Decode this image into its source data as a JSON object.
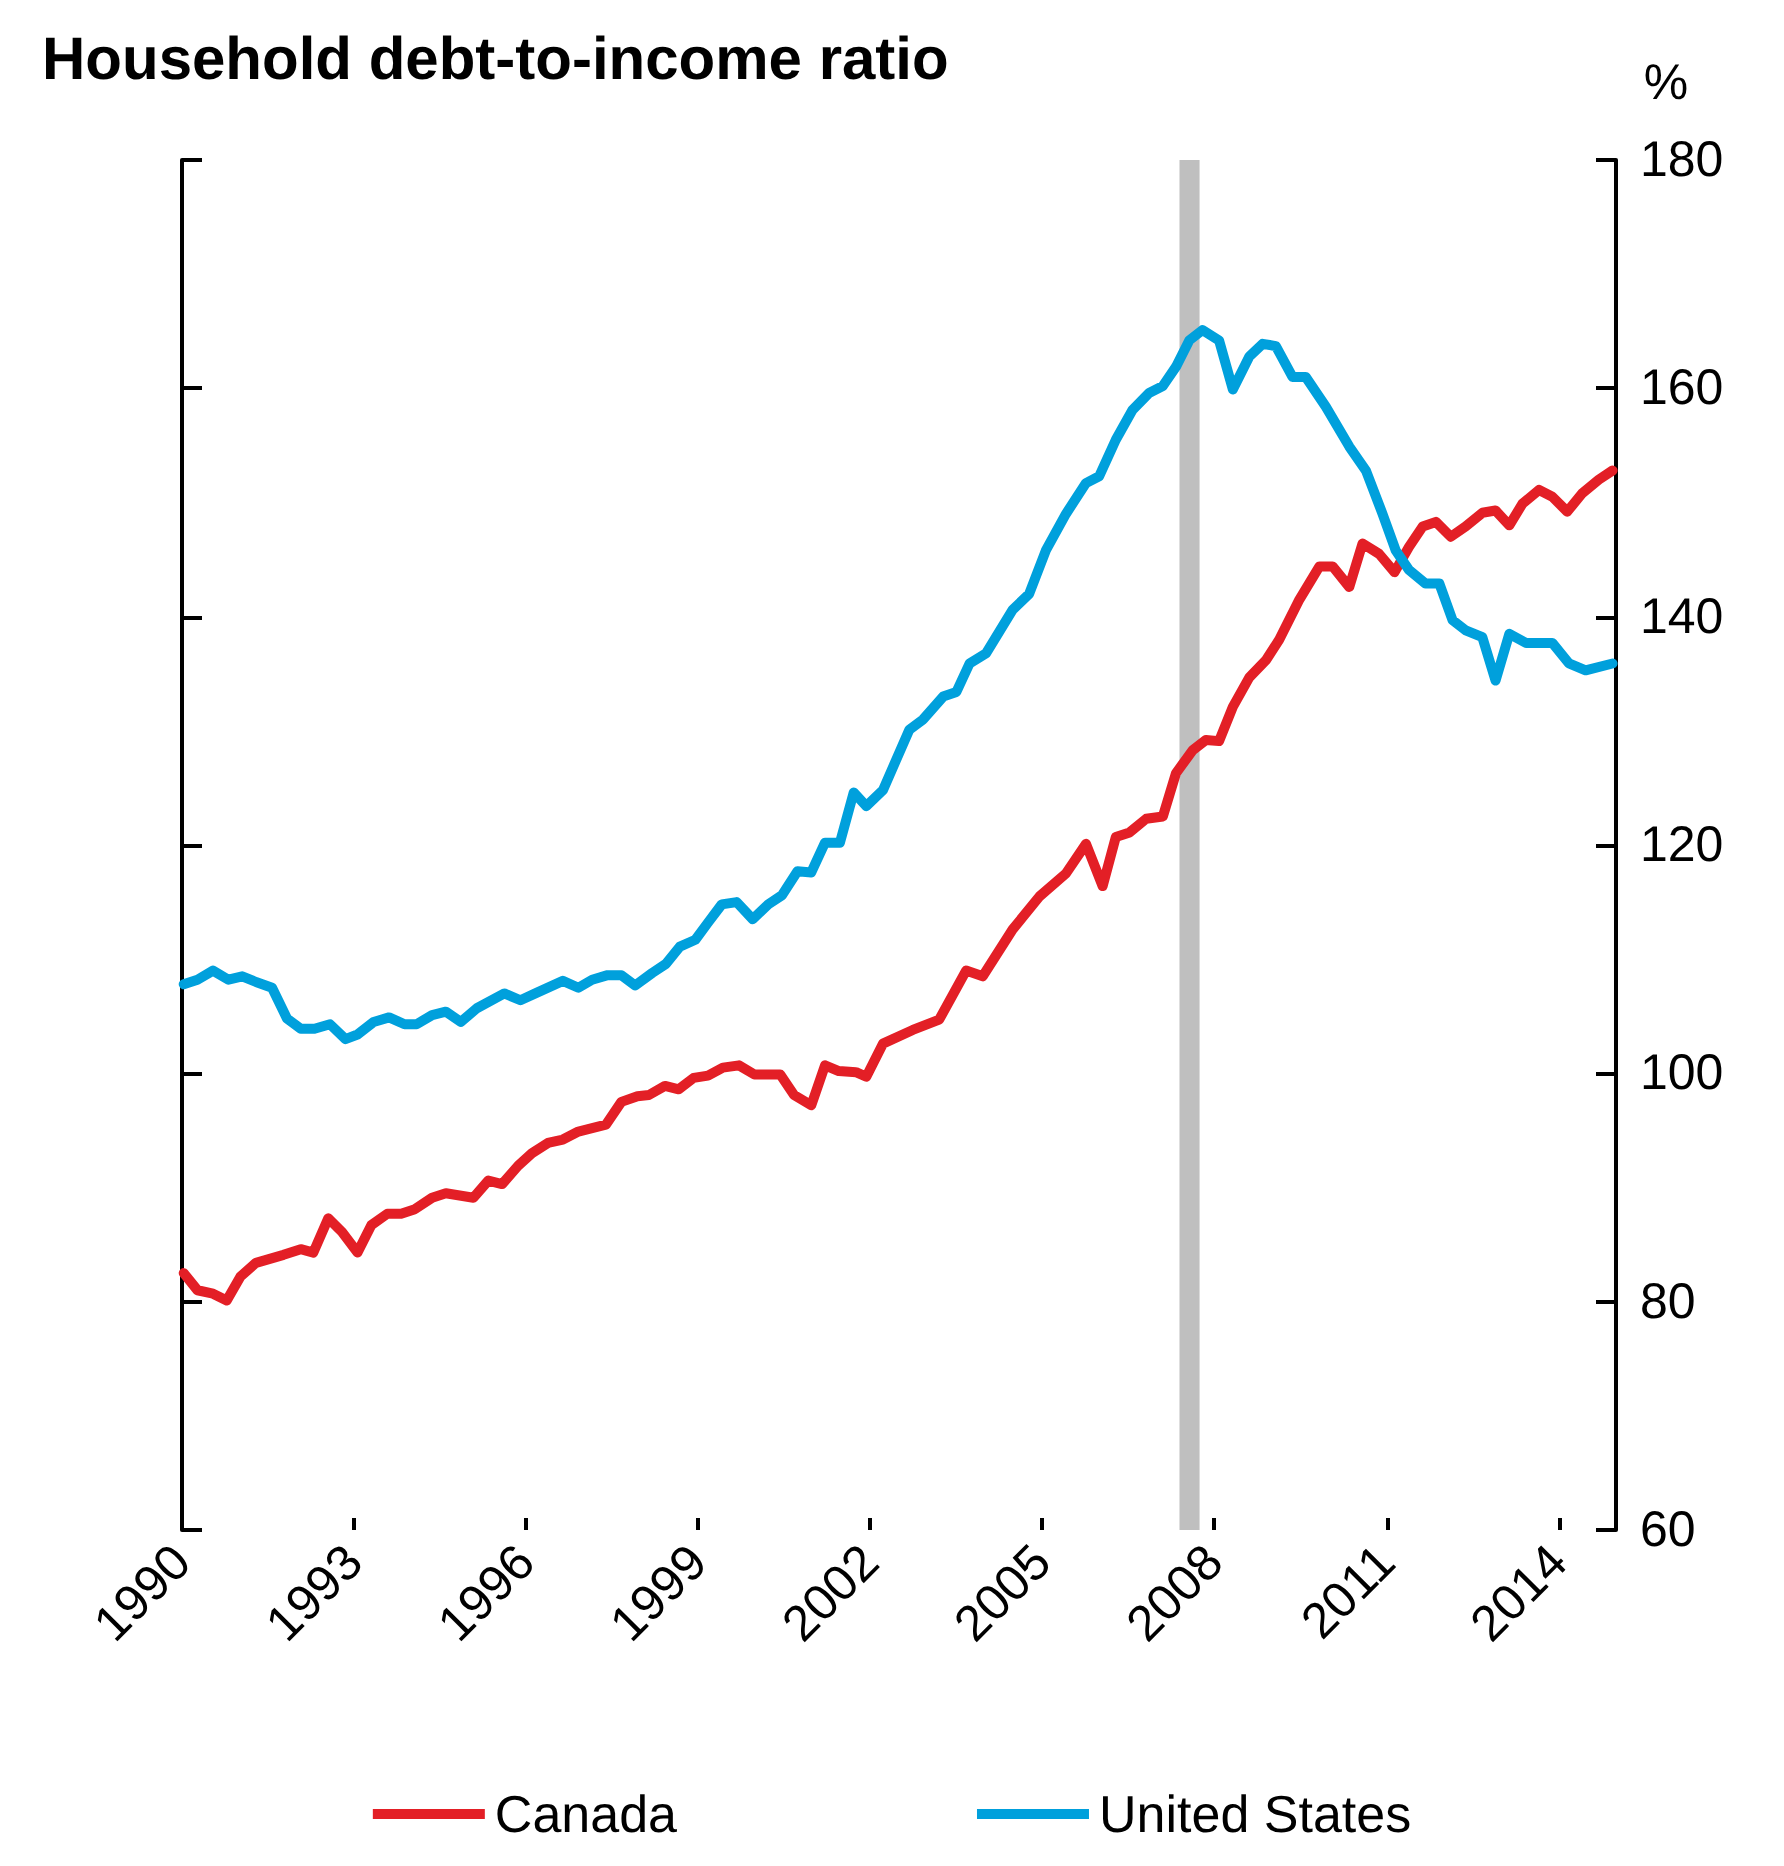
{
  "chart_data": {
    "type": "line",
    "title": "Household debt-to-income ratio",
    "ylabel": "%",
    "xlim": [
      1990,
      2015
    ],
    "xticks": [
      1990,
      1993,
      1996,
      1999,
      2002,
      2005,
      2008,
      2011,
      2014
    ],
    "ylim": [
      60,
      180
    ],
    "yticks": [
      60,
      80,
      100,
      120,
      140,
      160,
      180
    ],
    "grid": false,
    "legend": "bottom",
    "marker": "none",
    "line_style": "solid",
    "bands": [
      {
        "axis": "x",
        "from": 2007.39,
        "to": 2007.74,
        "color": "#bfbfbf"
      }
    ],
    "series": [
      {
        "name": "Canada",
        "color": "#e31f26",
        "x": [
          1990.03,
          1990.27,
          1990.54,
          1990.78,
          1991.02,
          1991.29,
          1991.77,
          1992.07,
          1992.29,
          1992.55,
          1992.79,
          1993.06,
          1993.3,
          1993.58,
          1993.82,
          1994.06,
          1994.36,
          1994.6,
          1995.08,
          1995.34,
          1995.58,
          1995.86,
          1996.1,
          1996.38,
          1996.64,
          1996.91,
          1997.39,
          1997.66,
          1997.94,
          1998.14,
          1998.42,
          1998.66,
          1998.92,
          1999.17,
          1999.43,
          1999.71,
          1999.98,
          2000.43,
          2000.67,
          2000.97,
          2001.21,
          2001.45,
          2001.75,
          2001.93,
          2002.22,
          2002.74,
          2003.2,
          2003.67,
          2003.96,
          2004.48,
          2004.95,
          2005.41,
          2005.76,
          2006.05,
          2006.28,
          2006.52,
          2006.81,
          2007.1,
          2007.33,
          2007.62,
          2007.85,
          2008.08,
          2008.32,
          2008.61,
          2008.9,
          2009.13,
          2009.48,
          2009.83,
          2010.06,
          2010.35,
          2010.58,
          2010.87,
          2011.14,
          2011.39,
          2011.63,
          2011.86,
          2012.12,
          2012.38,
          2012.67,
          2012.9,
          2013.14,
          2013.37,
          2013.66,
          2013.89,
          2014.15,
          2014.41,
          2014.7,
          2014.94
        ],
        "values": [
          82.5,
          81.0,
          80.7,
          80.1,
          82.2,
          83.4,
          84.1,
          84.6,
          84.3,
          87.3,
          86.1,
          84.3,
          86.7,
          87.7,
          87.7,
          88.1,
          89.1,
          89.5,
          89.1,
          90.6,
          90.3,
          91.9,
          93.0,
          93.9,
          94.2,
          94.9,
          95.5,
          97.5,
          98.0,
          98.1,
          98.9,
          98.6,
          99.6,
          99.8,
          100.5,
          100.7,
          99.9,
          99.9,
          98.1,
          97.2,
          100.7,
          100.2,
          100.1,
          99.7,
          102.6,
          103.8,
          104.7,
          109.0,
          108.5,
          112.6,
          115.5,
          117.5,
          120.1,
          116.4,
          120.7,
          121.1,
          122.3,
          122.5,
          126.3,
          128.3,
          129.2,
          129.1,
          132.1,
          134.7,
          136.2,
          138.0,
          141.5,
          144.4,
          144.4,
          142.6,
          146.4,
          145.5,
          143.9,
          146.1,
          147.9,
          148.3,
          147.0,
          147.9,
          149.1,
          149.3,
          148.0,
          149.9,
          151.1,
          150.5,
          149.2,
          150.8,
          152.0,
          152.8
        ]
      },
      {
        "name": "United States",
        "color": "#00a0dc",
        "x": [
          1990.03,
          1990.27,
          1990.54,
          1990.81,
          1991.05,
          1991.29,
          1991.57,
          1991.83,
          1992.07,
          1992.31,
          1992.58,
          1992.85,
          1993.06,
          1993.34,
          1993.61,
          1993.88,
          1994.09,
          1994.36,
          1994.6,
          1994.86,
          1995.14,
          1995.62,
          1995.9,
          1996.16,
          1996.64,
          1996.91,
          1997.15,
          1997.42,
          1997.66,
          1997.9,
          1998.2,
          1998.44,
          1998.68,
          1998.95,
          1999.17,
          1999.41,
          1999.67,
          1999.95,
          2000.22,
          2000.46,
          2000.73,
          2000.97,
          2001.21,
          2001.47,
          2001.71,
          2001.93,
          2002.22,
          2002.68,
          2002.92,
          2003.27,
          2003.5,
          2003.73,
          2004.02,
          2004.48,
          2004.77,
          2005.06,
          2005.41,
          2005.76,
          2005.99,
          2006.28,
          2006.57,
          2006.86,
          2007.1,
          2007.33,
          2007.56,
          2007.79,
          2008.08,
          2008.32,
          2008.61,
          2008.84,
          2009.07,
          2009.36,
          2009.59,
          2009.94,
          2010.35,
          2010.64,
          2010.93,
          2011.16,
          2011.39,
          2011.68,
          2011.92,
          2012.15,
          2012.38,
          2012.67,
          2012.9,
          2013.14,
          2013.43,
          2013.89,
          2014.18,
          2014.47,
          2014.94
        ],
        "values": [
          107.8,
          108.2,
          109.0,
          108.2,
          108.5,
          108.0,
          107.5,
          104.8,
          103.9,
          103.9,
          104.3,
          103.0,
          103.4,
          104.5,
          104.9,
          104.3,
          104.3,
          105.1,
          105.4,
          104.5,
          105.7,
          107.0,
          106.4,
          107.0,
          108.1,
          107.5,
          108.2,
          108.6,
          108.6,
          107.7,
          108.8,
          109.6,
          111.1,
          111.7,
          113.2,
          114.8,
          115.0,
          113.5,
          114.8,
          115.6,
          117.7,
          117.6,
          120.2,
          120.2,
          124.6,
          123.4,
          124.8,
          130.1,
          131.0,
          133.0,
          133.4,
          135.9,
          136.8,
          140.6,
          142.0,
          145.8,
          149.0,
          151.7,
          152.3,
          155.5,
          158.1,
          159.6,
          160.2,
          161.9,
          164.2,
          165.1,
          164.2,
          159.9,
          162.8,
          163.9,
          163.7,
          161.0,
          161.0,
          158.4,
          154.9,
          152.8,
          149.0,
          145.8,
          144.1,
          142.9,
          142.9,
          139.7,
          138.8,
          138.2,
          134.4,
          138.5,
          137.7,
          137.7,
          135.9,
          135.3,
          135.9
        ]
      }
    ]
  }
}
